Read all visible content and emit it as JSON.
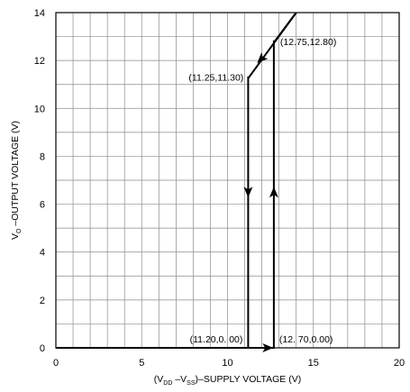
{
  "chart_data": {
    "type": "line",
    "xlabel": {
      "p1": "(V",
      "s1": "DD",
      "p2": " –V",
      "s2": "SS",
      "p3": ")–SUPPLY VOLTAGE (V)"
    },
    "ylabel": {
      "p1": "V",
      "s1": "O",
      "p2": " –OUTPUT VOLTAGE (V)"
    },
    "xlim": [
      0,
      20
    ],
    "ylim": [
      0,
      14
    ],
    "x_ticks": [
      0,
      5,
      10,
      15,
      20
    ],
    "y_ticks": [
      0,
      2,
      4,
      6,
      8,
      10,
      12,
      14
    ],
    "grid": true,
    "series": [
      {
        "x": [
          0,
          11.2,
          11.2,
          11.25,
          14.0
        ],
        "y": [
          0,
          0,
          11.3,
          11.3,
          14.0
        ]
      },
      {
        "x": [
          11.2,
          12.7,
          12.7,
          12.75,
          14.0
        ],
        "y": [
          0,
          0,
          12.8,
          12.8,
          14.0
        ]
      }
    ],
    "arrows": [
      {
        "x": 11.2,
        "y": 6.5,
        "dir": "down"
      },
      {
        "x": 12.7,
        "y": 6.5,
        "dir": "up"
      },
      {
        "x": 12.35,
        "y": 0,
        "dir": "right"
      },
      {
        "x": 11.95,
        "y": 12.05,
        "dir": "down-left"
      }
    ],
    "annotations": [
      {
        "text": "(11.25,11.30)",
        "x": 11.25,
        "y": 11.3,
        "anchor": "end"
      },
      {
        "text": "(12.75,12.80)",
        "x": 12.75,
        "y": 12.8,
        "anchor": "start"
      },
      {
        "text": "(11.20,0. 00)",
        "x": 11.2,
        "y": 0,
        "anchor": "end"
      },
      {
        "text": "(12. 70,0.00)",
        "x": 12.7,
        "y": 0,
        "anchor": "start"
      }
    ]
  }
}
